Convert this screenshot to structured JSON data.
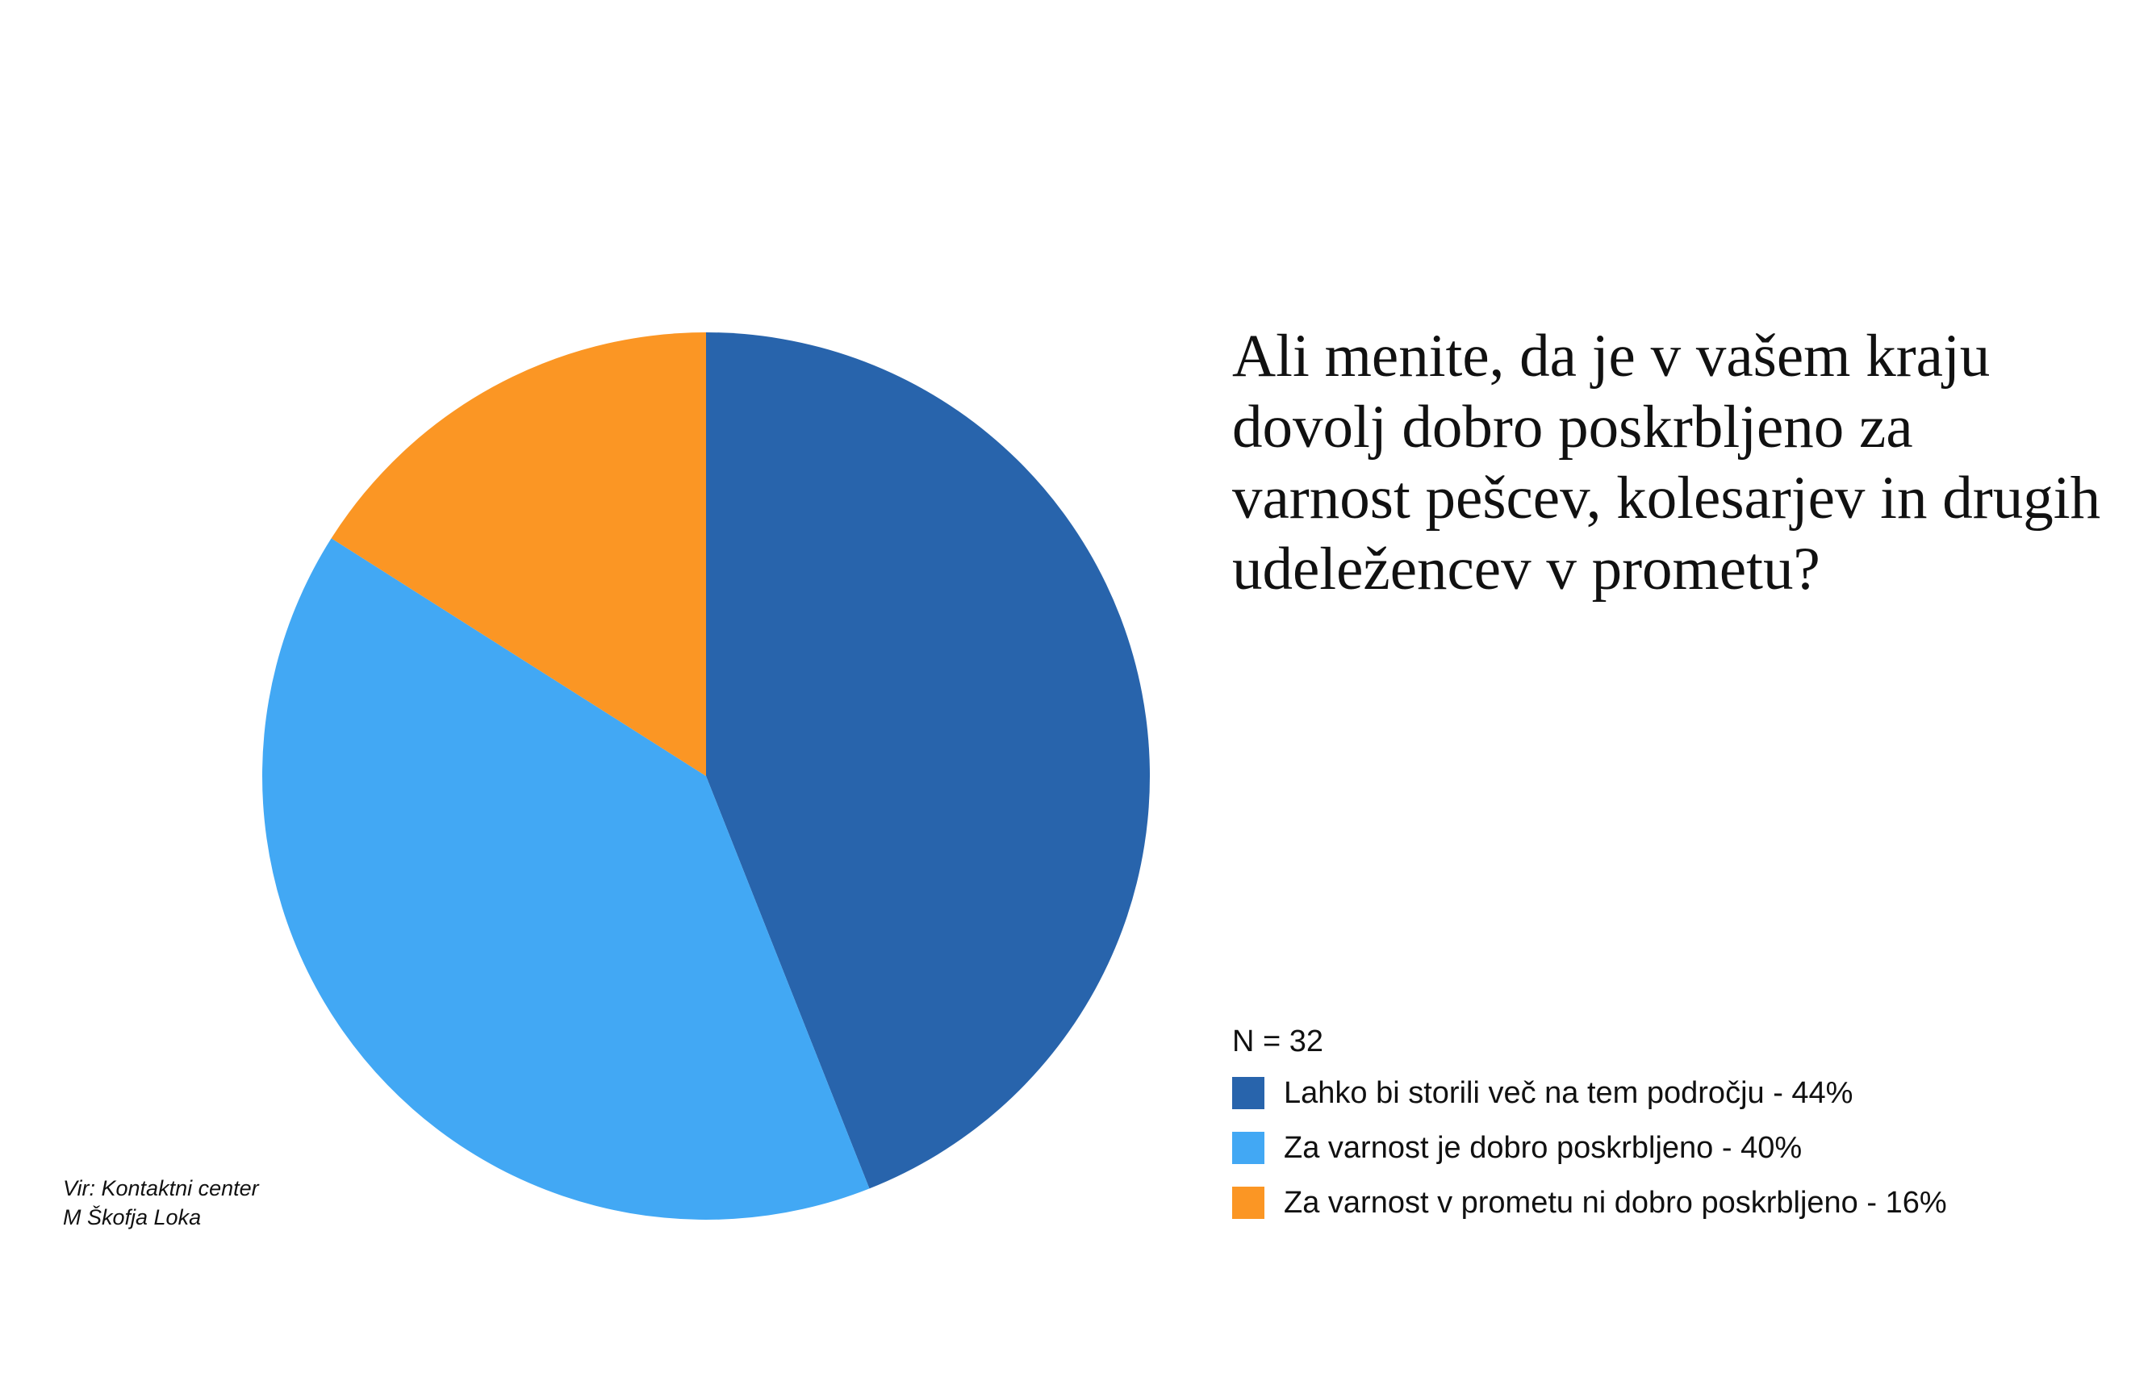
{
  "chart_data": {
    "type": "pie",
    "title": "Ali menite, da je v vašem kraju dovolj dobro poskrbljeno za varnost pešcev, kolesarjev in drugih udeležencev v prometu?",
    "sample_size_label": "N = 32",
    "legend_position": "right",
    "slices": [
      {
        "label": "Lahko bi storili več na tem področju - 44%",
        "value": 44,
        "color": "#2864ac"
      },
      {
        "label": "Za varnost je dobro poskrbljeno - 40%",
        "value": 40,
        "color": "#42a8f4"
      },
      {
        "label": "Za varnost v prometu ni dobro poskrbljeno - 16%",
        "value": 16,
        "color": "#fb9624"
      }
    ]
  },
  "source": {
    "line1": "Vir: Kontaktni center",
    "line2": "M Škofja Loka"
  }
}
